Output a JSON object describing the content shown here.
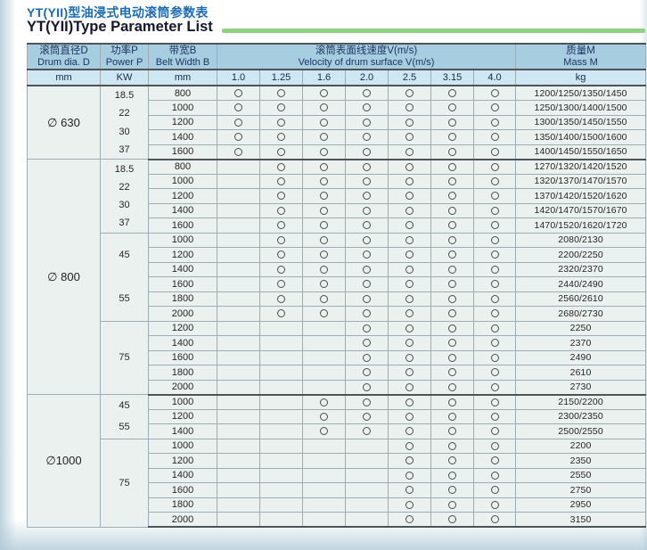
{
  "title": {
    "zh": "YT(YII)型油浸式电动滚筒参数表",
    "en": "YT(YII)Type Parameter List"
  },
  "colors": {
    "title_zh": "#1b6cb3",
    "title_en": "#14172e",
    "green_rule": "#90d181",
    "header_bg": "#a7cde0",
    "unit_row_bg": "#cfe7f2",
    "body_bg": "#eaf1ef"
  },
  "table": {
    "headers": {
      "drum": {
        "zh": "滚筒直径D",
        "en": "Drum dia. D",
        "unit": "mm"
      },
      "power": {
        "zh": "功率P",
        "en": "Power P",
        "unit": "KW"
      },
      "belt": {
        "zh": "带宽B",
        "en": "Belt Width B",
        "unit": "mm"
      },
      "velocity": {
        "zh": "滚筒表面线速度V(m/s)",
        "en": "Velocity of drum surface V(m/s)",
        "speeds": [
          "1.0",
          "1.25",
          "1.6",
          "2.0",
          "2.5",
          "3.15",
          "4.0"
        ]
      },
      "mass": {
        "zh": "质量M",
        "en": "Mass M",
        "unit": "kg"
      }
    },
    "mark_symbol": "circle",
    "groups": [
      {
        "diameter": "∅ 630",
        "sections": [
          {
            "powers": [
              "18.5",
              "22",
              "30",
              "37"
            ],
            "speed_marks": [
              1,
              1,
              1,
              1,
              1,
              1,
              1
            ],
            "rows": [
              {
                "belt": "800",
                "mass": "1200/1250/1350/1450"
              },
              {
                "belt": "1000",
                "mass": "1250/1300/1400/1500"
              },
              {
                "belt": "1200",
                "mass": "1300/1350/1450/1550"
              },
              {
                "belt": "1400",
                "mass": "1350/1400/1500/1600"
              },
              {
                "belt": "1600",
                "mass": "1400/1450/1550/1650"
              }
            ]
          }
        ]
      },
      {
        "diameter": "∅ 800",
        "sections": [
          {
            "powers": [
              "18.5",
              "22",
              "30",
              "37"
            ],
            "speed_marks": [
              0,
              1,
              1,
              1,
              1,
              1,
              1
            ],
            "rows": [
              {
                "belt": "800",
                "mass": "1270/1320/1420/1520"
              },
              {
                "belt": "1000",
                "mass": "1320/1370/1470/1570"
              },
              {
                "belt": "1200",
                "mass": "1370/1420/1520/1620"
              },
              {
                "belt": "1400",
                "mass": "1420/1470/1570/1670"
              },
              {
                "belt": "1600",
                "mass": "1470/1520/1620/1720"
              }
            ]
          },
          {
            "powers": [
              "45",
              "55"
            ],
            "speed_marks": [
              0,
              1,
              1,
              1,
              1,
              1,
              1
            ],
            "rows": [
              {
                "belt": "1000",
                "mass": "2080/2130"
              },
              {
                "belt": "1200",
                "mass": "2200/2250"
              },
              {
                "belt": "1400",
                "mass": "2320/2370"
              },
              {
                "belt": "1600",
                "mass": "2440/2490"
              },
              {
                "belt": "1800",
                "mass": "2560/2610"
              },
              {
                "belt": "2000",
                "mass": "2680/2730"
              }
            ]
          },
          {
            "powers": [
              "75"
            ],
            "speed_marks": [
              0,
              0,
              0,
              1,
              1,
              1,
              1
            ],
            "rows": [
              {
                "belt": "1200",
                "mass": "2250"
              },
              {
                "belt": "1400",
                "mass": "2370"
              },
              {
                "belt": "1600",
                "mass": "2490"
              },
              {
                "belt": "1800",
                "mass": "2610"
              },
              {
                "belt": "2000",
                "mass": "2730"
              }
            ]
          }
        ]
      },
      {
        "diameter": "∅1000",
        "sections": [
          {
            "powers": [
              "45",
              "55"
            ],
            "speed_marks": [
              0,
              0,
              1,
              1,
              1,
              1,
              1
            ],
            "rows": [
              {
                "belt": "1000",
                "mass": "2150/2200"
              },
              {
                "belt": "1200",
                "mass": "2300/2350"
              },
              {
                "belt": "1400",
                "mass": "2500/2550"
              }
            ]
          },
          {
            "powers": [
              "75"
            ],
            "speed_marks": [
              0,
              0,
              0,
              0,
              1,
              1,
              1
            ],
            "rows": [
              {
                "belt": "1000",
                "mass": "2200"
              },
              {
                "belt": "1200",
                "mass": "2350"
              },
              {
                "belt": "1400",
                "mass": "2550"
              },
              {
                "belt": "1600",
                "mass": "2750"
              },
              {
                "belt": "1800",
                "mass": "2950"
              },
              {
                "belt": "2000",
                "mass": "3150"
              }
            ]
          }
        ]
      }
    ]
  }
}
